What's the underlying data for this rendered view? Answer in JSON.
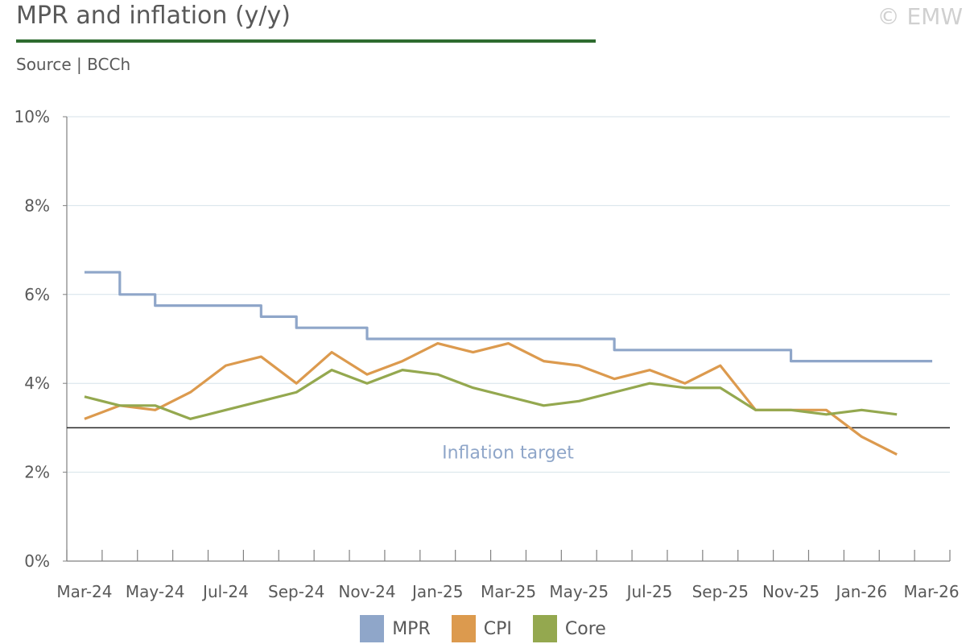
{
  "header": {
    "title": "MPR and inflation (y/y)",
    "source": "Source | BCCh",
    "copyright": "© EMW"
  },
  "colors": {
    "mpr": "#8fa6c9",
    "cpi": "#dc9a4e",
    "core": "#94a84f",
    "target_line": "#262626",
    "title_rule": "#2e6b2f"
  },
  "chart_data": {
    "type": "line",
    "title": "MPR and inflation (y/y)",
    "ylim": [
      0,
      10
    ],
    "yticks": [
      "0%",
      "2%",
      "4%",
      "6%",
      "8%",
      "10%"
    ],
    "xlim": [
      "Mar-24",
      "Mar-26"
    ],
    "x_tick_labels": [
      "Mar-24",
      "May-24",
      "Jul-24",
      "Sep-24",
      "Nov-24",
      "Jan-25",
      "Mar-25",
      "May-25",
      "Jul-25",
      "Sep-25",
      "Nov-25",
      "Jan-26",
      "Mar-26"
    ],
    "grid": true,
    "legend": "bottom",
    "annotation": {
      "text": "Inflation target",
      "value": 3
    },
    "series": [
      {
        "name": "MPR",
        "style": "step",
        "x": [
          "Mar-24",
          "Apr-24",
          "May-24",
          "Jun-24",
          "Jul-24",
          "Aug-24",
          "Sep-24",
          "Oct-24",
          "Nov-24",
          "Dec-24",
          "Jan-25",
          "Feb-25",
          "Mar-25",
          "Apr-25",
          "May-25",
          "Jun-25",
          "Jul-25",
          "Aug-25",
          "Sep-25",
          "Oct-25",
          "Nov-25",
          "Dec-25",
          "Jan-26",
          "Feb-26",
          "Mar-26"
        ],
        "values": [
          6.5,
          6.0,
          5.75,
          5.75,
          5.75,
          5.5,
          5.25,
          5.25,
          5.0,
          5.0,
          5.0,
          5.0,
          5.0,
          5.0,
          5.0,
          4.75,
          4.75,
          4.75,
          4.75,
          4.75,
          4.5,
          4.5,
          4.5,
          4.5,
          4.5
        ]
      },
      {
        "name": "CPI",
        "style": "line",
        "x": [
          "Mar-24",
          "Apr-24",
          "May-24",
          "Jun-24",
          "Jul-24",
          "Aug-24",
          "Sep-24",
          "Oct-24",
          "Nov-24",
          "Dec-24",
          "Jan-25",
          "Feb-25",
          "Mar-25",
          "Apr-25",
          "May-25",
          "Jun-25",
          "Jul-25",
          "Aug-25",
          "Sep-25",
          "Oct-25",
          "Nov-25",
          "Dec-25",
          "Jan-26",
          "Feb-26"
        ],
        "values": [
          3.2,
          3.5,
          3.4,
          3.8,
          4.4,
          4.6,
          4.0,
          4.7,
          4.2,
          4.5,
          4.9,
          4.7,
          4.9,
          4.5,
          4.4,
          4.1,
          4.3,
          4.0,
          4.4,
          3.4,
          3.4,
          3.4,
          2.8,
          2.4
        ]
      },
      {
        "name": "Core",
        "style": "line",
        "x": [
          "Mar-24",
          "Apr-24",
          "May-24",
          "Jun-24",
          "Jul-24",
          "Aug-24",
          "Sep-24",
          "Oct-24",
          "Nov-24",
          "Dec-24",
          "Jan-25",
          "Feb-25",
          "Mar-25",
          "Apr-25",
          "May-25",
          "Jun-25",
          "Jul-25",
          "Aug-25",
          "Sep-25",
          "Oct-25",
          "Nov-25",
          "Dec-25",
          "Jan-26",
          "Feb-26"
        ],
        "values": [
          3.7,
          3.5,
          3.5,
          3.2,
          3.4,
          3.6,
          3.8,
          4.3,
          4.0,
          4.3,
          4.2,
          3.9,
          3.7,
          3.5,
          3.6,
          3.8,
          4.0,
          3.9,
          3.9,
          3.4,
          3.4,
          3.3,
          3.4,
          3.3
        ]
      }
    ]
  }
}
